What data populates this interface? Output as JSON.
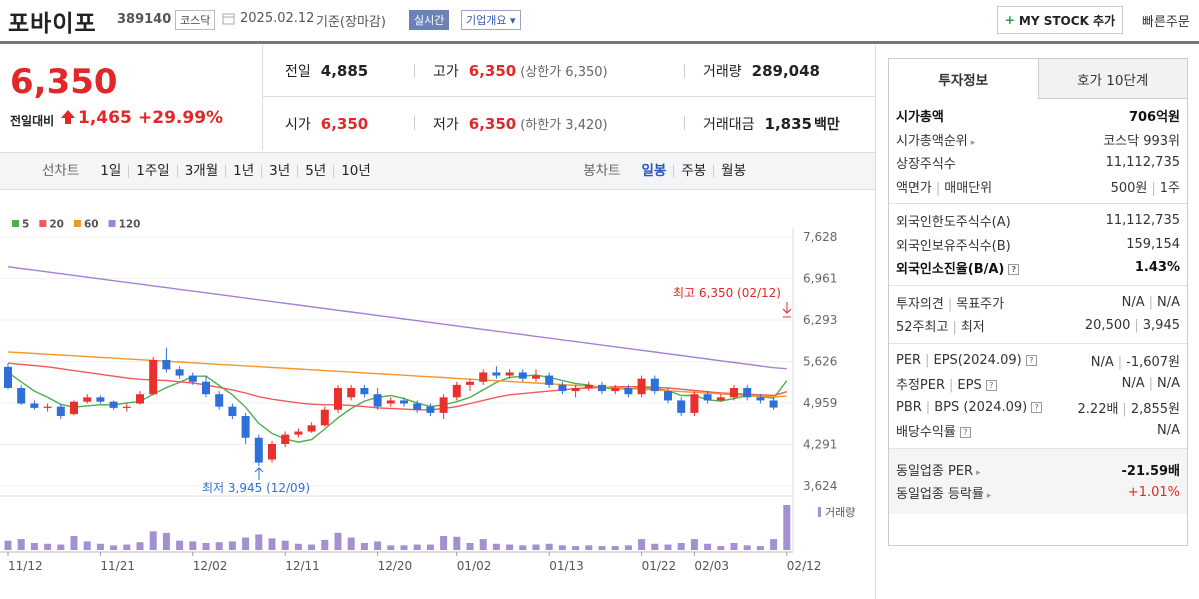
{
  "header": {
    "name": "포바이포",
    "code": "389140",
    "market": "코스닥",
    "date": "2025.02.12",
    "basis": "기준(장마감)",
    "realtime": "실시간",
    "company": "기업개요",
    "mystock": "MY STOCK 추가",
    "order": "빠른주문"
  },
  "quote": {
    "price": "6,350",
    "change_label": "전일대비",
    "change": "1,465",
    "change_rate": "+29.99%",
    "cells": [
      {
        "label": "전일",
        "value": "4,885"
      },
      {
        "label": "고가",
        "value": "6,350",
        "note": "(상한가 6,350)"
      },
      {
        "label": "거래량",
        "value": "289,048"
      },
      {
        "label": "시가",
        "value": "6,350"
      },
      {
        "label": "저가",
        "value": "6,350",
        "note": "(하한가 3,420)"
      },
      {
        "label": "거래대금",
        "value": "1,835",
        "unit": "백만"
      }
    ]
  },
  "chart_tabs": {
    "line_label": "선차트",
    "line_periods": [
      "1일",
      "1주일",
      "3개월",
      "1년",
      "3년",
      "5년",
      "10년"
    ],
    "candle_label": "봉차트",
    "candle_periods": [
      "일봉",
      "주봉",
      "월봉"
    ]
  },
  "chart_data": {
    "type": "candlestick",
    "categories": [
      "11/12",
      null,
      null,
      null,
      null,
      null,
      null,
      "11/21",
      null,
      null,
      null,
      null,
      null,
      null,
      "12/02",
      null,
      null,
      null,
      null,
      null,
      null,
      "12/11",
      null,
      null,
      null,
      null,
      null,
      null,
      "12/20",
      null,
      null,
      null,
      null,
      null,
      "01/02",
      null,
      null,
      null,
      null,
      null,
      null,
      "01/13",
      null,
      null,
      null,
      null,
      null,
      null,
      "01/22",
      null,
      null,
      null,
      "02/03",
      null,
      null,
      null,
      null,
      null,
      null,
      "02/12"
    ],
    "open": [
      5540,
      5200,
      4950,
      4880,
      4900,
      4780,
      4980,
      5050,
      4980,
      4880,
      4950,
      5100,
      5650,
      5500,
      5400,
      5300,
      5100,
      4900,
      4750,
      4400,
      4050,
      4300,
      4450,
      4500,
      4600,
      4850,
      5050,
      5200,
      5100,
      4950,
      5000,
      4950,
      4900,
      4800,
      5050,
      5250,
      5300,
      5450,
      5400,
      5450,
      5350,
      5400,
      5250,
      5150,
      5200,
      5250,
      5150,
      5200,
      5100,
      5350,
      5150,
      5000,
      4800,
      5100,
      5000,
      5050,
      5200,
      5050,
      5000,
      6350
    ],
    "high": [
      5600,
      5250,
      5000,
      4950,
      4950,
      5000,
      5100,
      5080,
      5000,
      4950,
      5150,
      5700,
      5850,
      5550,
      5450,
      5400,
      5150,
      4950,
      4800,
      4450,
      4350,
      4500,
      4550,
      4650,
      4900,
      5250,
      5250,
      5250,
      5200,
      5050,
      5050,
      5000,
      4950,
      5100,
      5300,
      5350,
      5500,
      5550,
      5500,
      5500,
      5500,
      5450,
      5300,
      5250,
      5300,
      5300,
      5250,
      5250,
      5400,
      5400,
      5200,
      5050,
      5150,
      5150,
      5100,
      5250,
      5250,
      5100,
      5050,
      6350
    ],
    "low": [
      5180,
      4930,
      4850,
      4820,
      4700,
      4760,
      4950,
      4950,
      4850,
      4820,
      4930,
      5080,
      5450,
      5350,
      5250,
      5050,
      4850,
      4700,
      4300,
      3945,
      4000,
      4250,
      4400,
      4480,
      4580,
      4800,
      5000,
      5050,
      4850,
      4900,
      4900,
      4800,
      4750,
      4700,
      5000,
      5150,
      5250,
      5350,
      5350,
      5300,
      5300,
      5200,
      5100,
      5050,
      5150,
      5100,
      5100,
      5050,
      5050,
      5100,
      4950,
      4750,
      4750,
      4950,
      4980,
      5000,
      5000,
      4950,
      4850,
      6350
    ],
    "close": [
      5200,
      4950,
      4880,
      4900,
      4750,
      4980,
      5050,
      4980,
      4880,
      4900,
      5100,
      5650,
      5500,
      5400,
      5300,
      5100,
      4900,
      4750,
      4400,
      4000,
      4300,
      4450,
      4500,
      4600,
      4850,
      5200,
      5200,
      5100,
      4900,
      5000,
      4950,
      4850,
      4800,
      5050,
      5250,
      5300,
      5450,
      5400,
      5450,
      5350,
      5400,
      5250,
      5150,
      5200,
      5250,
      5150,
      5200,
      5100,
      5350,
      5150,
      5000,
      4800,
      5100,
      5000,
      5050,
      5200,
      5050,
      5000,
      4885,
      6350
    ],
    "volume": [
      60000,
      70000,
      45000,
      40000,
      35000,
      90000,
      55000,
      40000,
      30000,
      35000,
      50000,
      120000,
      110000,
      60000,
      55000,
      45000,
      50000,
      55000,
      80000,
      100000,
      75000,
      60000,
      40000,
      35000,
      65000,
      110000,
      80000,
      45000,
      55000,
      30000,
      30000,
      35000,
      35000,
      90000,
      85000,
      45000,
      70000,
      40000,
      35000,
      30000,
      35000,
      40000,
      30000,
      25000,
      30000,
      25000,
      25000,
      30000,
      70000,
      40000,
      35000,
      45000,
      70000,
      40000,
      25000,
      45000,
      30000,
      25000,
      70000,
      289048
    ],
    "series": [
      {
        "name": "5",
        "color": "#4caf50",
        "values": [
          5450,
          5300,
          5150,
          5050,
          4936,
          4892,
          4912,
          4932,
          4928,
          4958,
          4982,
          5102,
          5206,
          5290,
          5390,
          5390,
          5240,
          5090,
          4890,
          4630,
          4470,
          4380,
          4330,
          4370,
          4540,
          4720,
          4870,
          4990,
          5050,
          5080,
          5030,
          4960,
          4900,
          4930,
          4980,
          5050,
          5170,
          5290,
          5370,
          5390,
          5410,
          5370,
          5320,
          5270,
          5250,
          5200,
          5190,
          5180,
          5210,
          5190,
          5160,
          5080,
          5080,
          5010,
          4990,
          5030,
          5080,
          5060,
          5037,
          5317
        ]
      },
      {
        "name": "20",
        "color": "#f25a5a",
        "values": [
          5600,
          5580,
          5560,
          5540,
          5510,
          5480,
          5450,
          5420,
          5390,
          5360,
          5340,
          5330,
          5320,
          5300,
          5280,
          5250,
          5210,
          5170,
          5120,
          5060,
          5020,
          4990,
          4960,
          4940,
          4930,
          4930,
          4920,
          4900,
          4880,
          4870,
          4860,
          4850,
          4850,
          4870,
          4900,
          4950,
          5000,
          5050,
          5090,
          5110,
          5130,
          5150,
          5170,
          5190,
          5200,
          5210,
          5220,
          5220,
          5220,
          5210,
          5200,
          5180,
          5160,
          5140,
          5120,
          5110,
          5100,
          5090,
          5080,
          5140
        ]
      },
      {
        "name": "60",
        "color": "#f2962e",
        "values": [
          5780,
          5768,
          5755,
          5742,
          5730,
          5718,
          5705,
          5692,
          5680,
          5668,
          5655,
          5642,
          5630,
          5618,
          5605,
          5592,
          5580,
          5568,
          5555,
          5542,
          5530,
          5518,
          5505,
          5492,
          5480,
          5468,
          5455,
          5442,
          5430,
          5418,
          5405,
          5392,
          5380,
          5368,
          5355,
          5342,
          5330,
          5318,
          5305,
          5292,
          5280,
          5268,
          5255,
          5242,
          5230,
          5218,
          5205,
          5192,
          5180,
          5168,
          5155,
          5142,
          5130,
          5118,
          5105,
          5092,
          5080,
          5068,
          5055,
          5070
        ]
      },
      {
        "name": "120",
        "color": "#a77fd6",
        "values": [
          7150,
          7122,
          7094,
          7066,
          7038,
          7010,
          6982,
          6954,
          6926,
          6898,
          6870,
          6842,
          6814,
          6786,
          6758,
          6730,
          6702,
          6674,
          6646,
          6618,
          6590,
          6562,
          6534,
          6506,
          6478,
          6450,
          6422,
          6394,
          6366,
          6338,
          6310,
          6282,
          6254,
          6226,
          6198,
          6170,
          6142,
          6114,
          6086,
          6058,
          6030,
          6002,
          5974,
          5946,
          5918,
          5890,
          5862,
          5834,
          5806,
          5778,
          5750,
          5722,
          5694,
          5666,
          5638,
          5610,
          5582,
          5554,
          5526,
          5510
        ]
      }
    ],
    "up_color": "#e9302f",
    "down_color": "#2f6fd8",
    "volume_color": "#a48fd1",
    "ylim": [
      3624,
      7628
    ],
    "yticks": [
      {
        "value": 7628,
        "label": "7,628"
      },
      {
        "value": 6961,
        "label": "6,961"
      },
      {
        "value": 6293,
        "label": "6,293"
      },
      {
        "value": 5626,
        "label": "5,626"
      },
      {
        "value": 4959,
        "label": "4,959"
      },
      {
        "value": 4291,
        "label": "4,291"
      },
      {
        "value": 3624,
        "label": "3,624"
      }
    ],
    "grid": true,
    "annotations": [
      {
        "text": "최고 6,350 (02/12)"
      },
      {
        "text": "최저 3,945 (12/09)"
      }
    ],
    "volume_label": "거래량"
  },
  "invest": {
    "tabs": [
      "투자정보",
      "호가 10단계"
    ],
    "groups": [
      [
        {
          "label": [
            "시가총액"
          ],
          "value": [
            "706억원"
          ]
        },
        {
          "label": [
            "시가총액순위"
          ],
          "value": [
            "코스닥 993위"
          ]
        },
        {
          "label": [
            "상장주식수"
          ],
          "value": [
            "11,112,735"
          ]
        },
        {
          "label": [
            "액면가",
            "매매단위"
          ],
          "value": [
            "500원",
            "1주"
          ]
        }
      ],
      [
        {
          "label": [
            "외국인한도주식수(A)"
          ],
          "value": [
            "11,112,735"
          ]
        },
        {
          "label": [
            "외국인보유주식수(B)"
          ],
          "value": [
            "159,154"
          ]
        },
        {
          "label": [
            "외국인소진율(B/A)"
          ],
          "value": [
            "1.43%"
          ]
        }
      ],
      [
        {
          "label": [
            "투자의견",
            "목표주가"
          ],
          "value": [
            "N/A",
            "N/A"
          ]
        },
        {
          "label": [
            "52주최고",
            "최저"
          ],
          "value": [
            "20,500",
            "3,945"
          ]
        }
      ],
      [
        {
          "label": [
            "PER",
            "EPS(2024.09)"
          ],
          "value": [
            "N/A",
            "-1,607원"
          ]
        },
        {
          "label": [
            "추정PER",
            "EPS"
          ],
          "value": [
            "N/A",
            "N/A"
          ]
        },
        {
          "label": [
            "PBR",
            "BPS (2024.09)"
          ],
          "value": [
            "2.22배",
            "2,855원"
          ]
        },
        {
          "label": [
            "배당수익률"
          ],
          "value": [
            "N/A"
          ]
        }
      ],
      [
        {
          "label": [
            "동일업종 PER"
          ],
          "value": [
            "-21.59배"
          ]
        },
        {
          "label": [
            "동일업종 등락률"
          ],
          "value": [
            "+1.01%"
          ]
        }
      ]
    ]
  }
}
